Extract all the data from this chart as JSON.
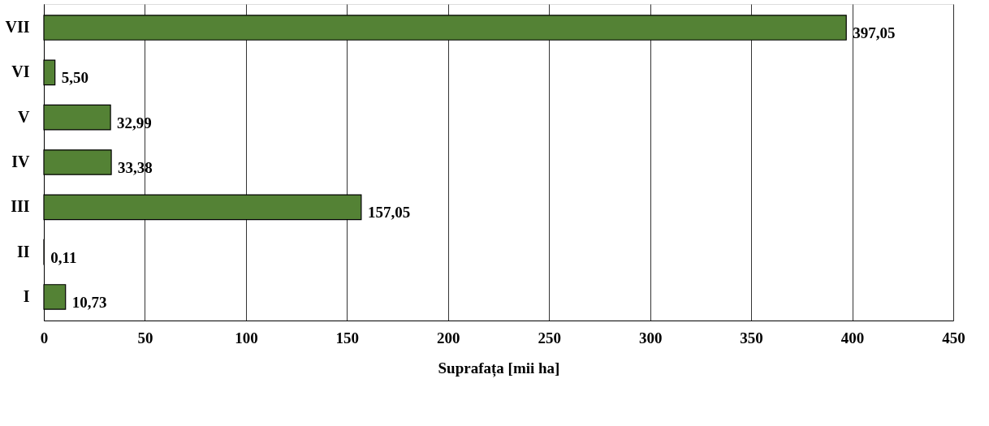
{
  "chart_data": {
    "type": "bar",
    "orientation": "horizontal",
    "categories": [
      "VII",
      "VI",
      "V",
      "IV",
      "III",
      "II",
      "I"
    ],
    "values": [
      397.05,
      5.5,
      32.99,
      33.38,
      157.05,
      0.11,
      10.73
    ],
    "value_labels": [
      "397,05",
      "5,50",
      "32,99",
      "33,38",
      "157,05",
      "0,11",
      "10,73"
    ],
    "color": "#548235",
    "xlabel": "Suprafața [mii ha]",
    "xlim": [
      0,
      450
    ],
    "xticks": [
      0,
      50,
      100,
      150,
      200,
      250,
      300,
      350,
      400,
      450
    ],
    "grid": "x"
  }
}
